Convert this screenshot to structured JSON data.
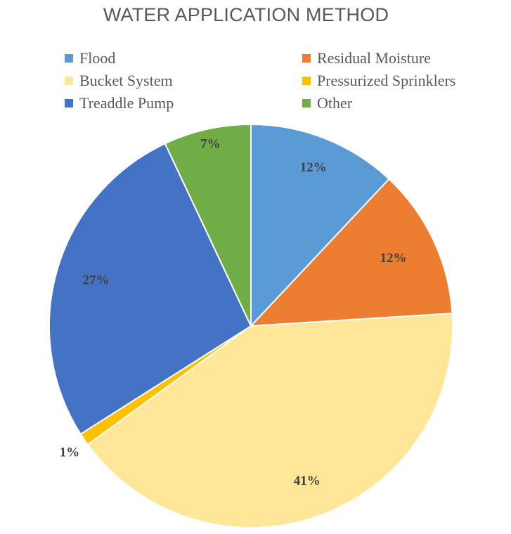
{
  "chart_data": {
    "type": "pie",
    "title": "WATER APPLICATION METHOD",
    "categories": [
      "Flood",
      "Residual Moisture",
      "Bucket System",
      "Pressurized Sprinklers",
      "Treaddle Pump",
      "Other"
    ],
    "values": [
      12,
      12,
      41,
      1,
      27,
      7
    ],
    "data_labels": [
      "12%",
      "12%",
      "41%",
      "1%",
      "27%",
      "7%"
    ],
    "slice_order": [
      "Flood",
      "Residual Moisture",
      "Bucket System",
      "Pressurized Sprinklers",
      "Treaddle Pump",
      "Other"
    ],
    "colors": [
      "#5B9BD5",
      "#ED7D31",
      "#FFE699",
      "#FFC000",
      "#4472C4",
      "#70AD47"
    ],
    "legend_position": "top"
  }
}
